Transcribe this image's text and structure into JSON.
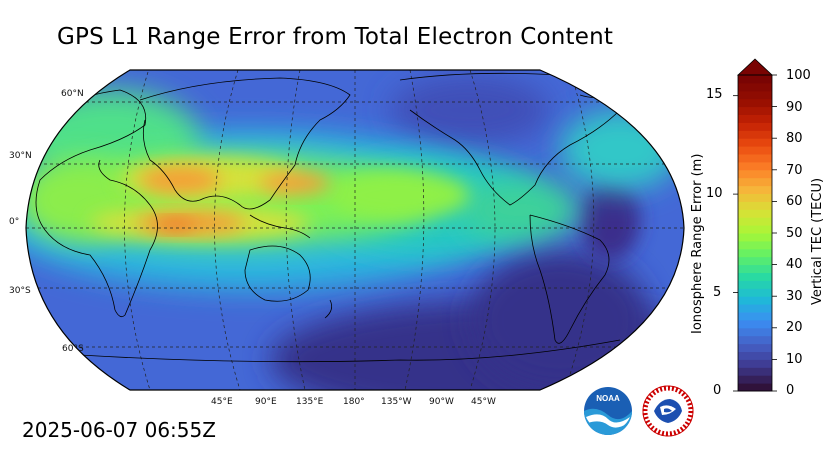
{
  "title": "GPS L1 Range Error from Total Electron Content",
  "timestamp": "2025-06-07 06:55Z",
  "map": {
    "projection": "robinson",
    "lat_labels": [
      "60°N",
      "30°N",
      "0°",
      "30°S",
      "60°S"
    ],
    "lon_labels": [
      "45°E",
      "90°E",
      "135°E",
      "180°",
      "135°W",
      "90°W",
      "45°W"
    ]
  },
  "colorbar": {
    "left_label": "Ionosphere Range Error (m)",
    "right_label": "Vertical TEC (TECU)",
    "left_ticks": [
      "0",
      "5",
      "10",
      "15"
    ],
    "right_ticks": [
      "0",
      "10",
      "20",
      "30",
      "40",
      "50",
      "60",
      "70",
      "80",
      "90",
      "100"
    ],
    "colors": [
      "#30123b",
      "#3e3a91",
      "#4562c8",
      "#3b8ef2",
      "#1fb9d8",
      "#27d9a4",
      "#62f066",
      "#a8f637",
      "#d8e136",
      "#f7b43a",
      "#fb7d26",
      "#ea4a10",
      "#c42204",
      "#960f01",
      "#7a0403"
    ],
    "extend": "max"
  },
  "logos": {
    "noaa": "NOAA",
    "nws": "NATIONAL WEATHER SERVICE"
  }
}
